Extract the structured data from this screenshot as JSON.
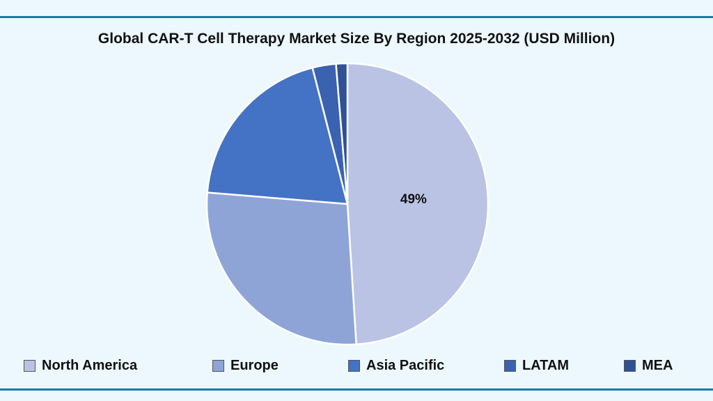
{
  "chart_data": {
    "type": "pie",
    "title": "Global CAR-T Cell Therapy Market Size By Region 2025-2032 (USD Million)",
    "categories": [
      "North America",
      "Europe",
      "Asia Pacific",
      "LATAM",
      "MEA"
    ],
    "values": [
      49,
      27.3,
      19.7,
      2.7,
      1.3
    ],
    "colors": [
      "#bac3e3",
      "#8fa4d6",
      "#4472c4",
      "#3a62b0",
      "#2f5195"
    ],
    "data_labels": [
      "49%",
      "",
      "",
      "",
      ""
    ],
    "legend_position": "bottom",
    "start_angle_deg": 0,
    "direction": "clockwise"
  }
}
